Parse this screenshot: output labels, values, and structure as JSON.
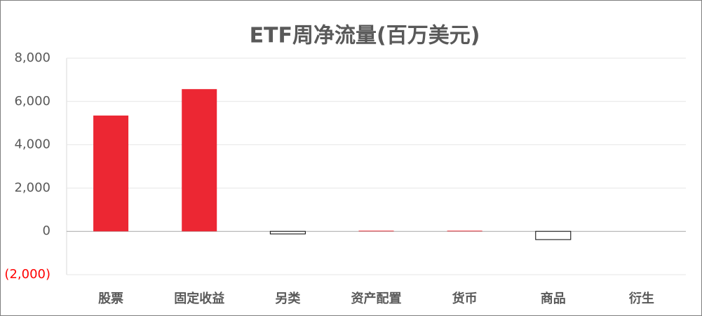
{
  "chart_data": {
    "type": "bar",
    "title": "ETF周净流量(百万美元)",
    "categories": [
      "股票",
      "固定收益",
      "另类",
      "资产配置",
      "货币",
      "商品",
      "衍生"
    ],
    "values": [
      5350,
      6570,
      -120,
      30,
      30,
      -380,
      0
    ],
    "color": "#ec2733",
    "negative_color": "#ffffff",
    "negative_stroke": "#000000",
    "negative_tick_color": "#ff0000",
    "ylim": [
      -2000,
      8000
    ],
    "yticks": [
      {
        "value": -2000,
        "label": "(2,000)"
      },
      0,
      {
        "value": 2000,
        "label": "2,000"
      },
      {
        "value": 4000,
        "label": "4,000"
      },
      {
        "value": 6000,
        "label": "6,000"
      },
      {
        "value": 8000,
        "label": "8,000"
      }
    ],
    "grid": true
  }
}
